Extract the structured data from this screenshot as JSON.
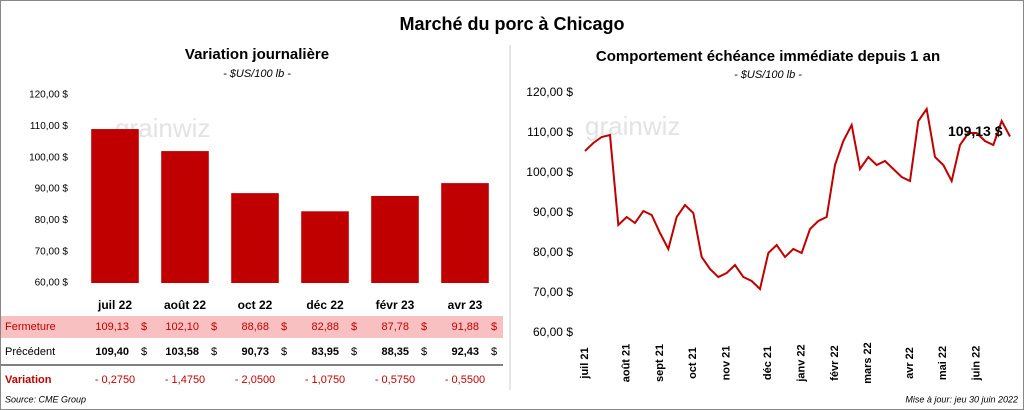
{
  "title": "Marché du porc à Chicago",
  "watermark": "grainwiz",
  "chart_data": [
    {
      "type": "bar",
      "title": "Variation journalière",
      "subtitle": "- $US/100 lb -",
      "categories": [
        "juil 22",
        "août 22",
        "oct 22",
        "déc 22",
        "févr 23",
        "avr 23"
      ],
      "values": [
        109.13,
        102.1,
        88.68,
        82.88,
        87.78,
        91.88
      ],
      "value_labels": [
        "109,13",
        "102,10",
        "88,68",
        "82,88",
        "87,78",
        "91,88"
      ],
      "color": "#c00000",
      "grid": false,
      "ylim": [
        60,
        120
      ],
      "yticks": [
        {
          "value": 60,
          "label": "60,00 $"
        },
        {
          "value": 70,
          "label": "70,00 $"
        },
        {
          "value": 80,
          "label": "80,00 $"
        },
        {
          "value": 90,
          "label": "90,00 $"
        },
        {
          "value": 100,
          "label": "100,00 $"
        },
        {
          "value": 110,
          "label": "110,00 $"
        },
        {
          "value": 120,
          "label": "120,00 $"
        }
      ]
    },
    {
      "type": "line",
      "title": "Comportement  échéance immédiate depuis 1 an",
      "subtitle": "- $US/100 lb -",
      "categories": [
        "juil 21",
        null,
        null,
        null,
        null,
        "août 21",
        null,
        null,
        null,
        "sept 21",
        null,
        null,
        null,
        "oct 21",
        null,
        null,
        null,
        "nov 21",
        null,
        null,
        null,
        null,
        "déc 21",
        null,
        null,
        null,
        "janv 22",
        null,
        null,
        null,
        "févr 22",
        null,
        null,
        null,
        "mars 22",
        null,
        null,
        null,
        null,
        "avr 22",
        null,
        null,
        null,
        "mai 22",
        null,
        null,
        null,
        "juin 22",
        null,
        null,
        null,
        null
      ],
      "values": [
        105.5,
        107.5,
        109,
        109.5,
        87,
        89,
        87.5,
        90.5,
        89.5,
        85,
        81,
        89,
        92,
        90,
        79,
        76,
        74,
        75,
        77,
        74,
        73,
        71,
        80,
        82,
        79,
        81,
        80,
        86,
        88,
        89,
        102,
        108,
        112,
        101,
        104,
        102,
        103,
        101,
        99,
        98,
        113,
        116,
        104,
        102,
        98,
        107,
        110,
        110,
        108,
        107,
        113,
        109.13
      ],
      "annotation": "109,13 $",
      "color": "#c00000",
      "grid": false,
      "ylim": [
        60,
        120
      ],
      "yticks": [
        {
          "value": 60,
          "label": "60,00 $"
        },
        {
          "value": 70,
          "label": "70,00 $"
        },
        {
          "value": 80,
          "label": "80,00 $"
        },
        {
          "value": 90,
          "label": "90,00 $"
        },
        {
          "value": 100,
          "label": "100,00 $"
        },
        {
          "value": 110,
          "label": "110,00 $"
        },
        {
          "value": 120,
          "label": "120,00 $"
        }
      ]
    }
  ],
  "table": {
    "currency": "$",
    "rows": [
      {
        "label": "Fermeture"
      },
      {
        "label": "Précédent",
        "cells": [
          "109,40",
          "103,58",
          "90,73",
          "83,95",
          "88,35",
          "92,43"
        ]
      },
      {
        "label": "Variation",
        "cells": [
          "- 0,2750",
          "- 1,4750",
          "- 2,0500",
          "- 1,0750",
          "- 0,5750",
          "- 0,5500"
        ]
      }
    ]
  },
  "footer": {
    "source": "Source: CME Group",
    "updated": "Mise à jour: jeu 30 juin 2022"
  }
}
